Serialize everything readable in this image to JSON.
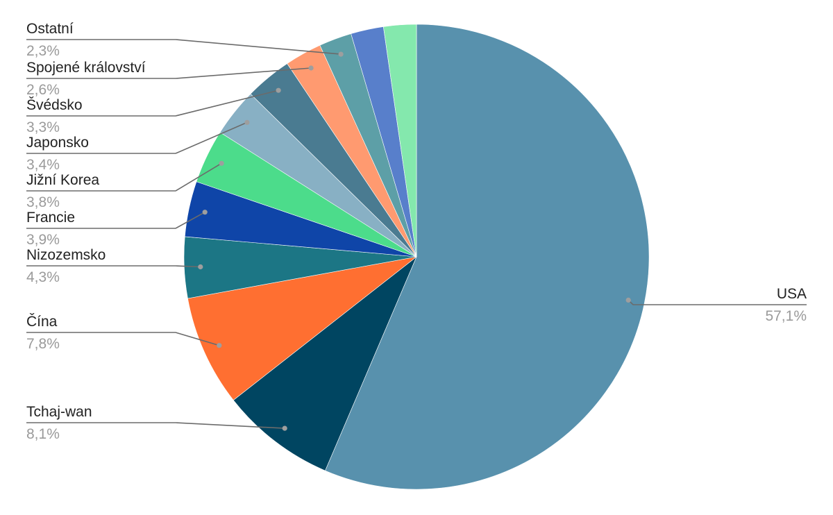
{
  "chart_data": {
    "type": "pie",
    "title": "",
    "slices": [
      {
        "label": "USA",
        "percent_label": "57,1%",
        "value": 57.1,
        "color": "#5891ad"
      },
      {
        "label": "Tchaj-wan",
        "percent_label": "8,1%",
        "value": 8.1,
        "color": "#004561"
      },
      {
        "label": "Čína",
        "percent_label": "7,8%",
        "value": 7.8,
        "color": "#ff6f31"
      },
      {
        "label": "Nizozemsko",
        "percent_label": "4,3%",
        "value": 4.3,
        "color": "#1c7685"
      },
      {
        "label": "Francie",
        "percent_label": "3,9%",
        "value": 3.9,
        "color": "#0f45a8"
      },
      {
        "label": "Jižní Korea",
        "percent_label": "3,8%",
        "value": 3.8,
        "color": "#4cdc8b"
      },
      {
        "label": "Japonsko",
        "percent_label": "3,4%",
        "value": 3.4,
        "color": "#88b0c4"
      },
      {
        "label": "Švédsko",
        "percent_label": "3,3%",
        "value": 3.3,
        "color": "#4a7b91"
      },
      {
        "label": "Spojené království",
        "percent_label": "2,6%",
        "value": 2.6,
        "color": "#ff9a70"
      },
      {
        "label": "Ostatní",
        "percent_label": "2,3%",
        "value": 2.3,
        "color": "#5d9fa7"
      },
      {
        "label": "",
        "percent_label": "",
        "value": 2.3,
        "color": "#587fcb"
      },
      {
        "label": "",
        "percent_label": "",
        "value": 2.3,
        "color": "#84e8ad"
      }
    ],
    "start": "12 o'clock",
    "direction": "clockwise",
    "legend": "none",
    "label_line_color": "#6b6b6b"
  }
}
